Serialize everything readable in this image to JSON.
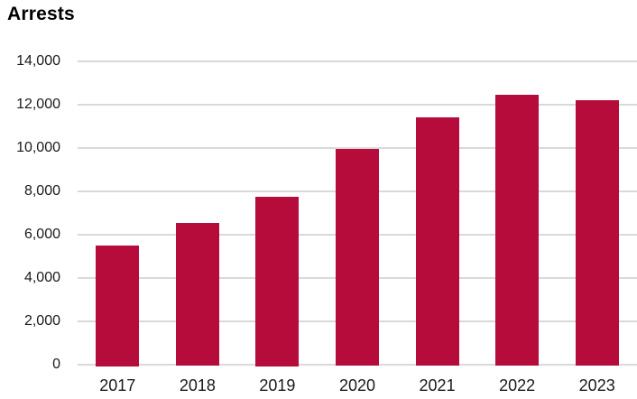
{
  "page": {
    "title": "Arrests"
  },
  "colors": {
    "background": "#FFFFFF",
    "bar": "#B50C3C",
    "gridline": "#D9D9D9",
    "axis_text": "#1A1A1A",
    "title_text": "#000000"
  },
  "chart_data": {
    "type": "bar",
    "title": "Arrests",
    "categories": [
      "2017",
      "2018",
      "2019",
      "2020",
      "2021",
      "2022",
      "2023"
    ],
    "values": [
      5500,
      6550,
      7750,
      9950,
      11400,
      12450,
      12200
    ],
    "xlabel": "",
    "ylabel": "",
    "ylim": [
      0,
      14000
    ],
    "ytick_interval": 2000,
    "yticks": [
      {
        "value": 0,
        "label": "0"
      },
      {
        "value": 2000,
        "label": "2,000"
      },
      {
        "value": 4000,
        "label": "4,000"
      },
      {
        "value": 6000,
        "label": "6,000"
      },
      {
        "value": 8000,
        "label": "8,000"
      },
      {
        "value": 10000,
        "label": "10,000"
      },
      {
        "value": 12000,
        "label": "12,000"
      },
      {
        "value": 14000,
        "label": "14,000"
      }
    ],
    "grid": "horizontal",
    "legend_position": "none",
    "bar_color": "#B50C3C"
  }
}
